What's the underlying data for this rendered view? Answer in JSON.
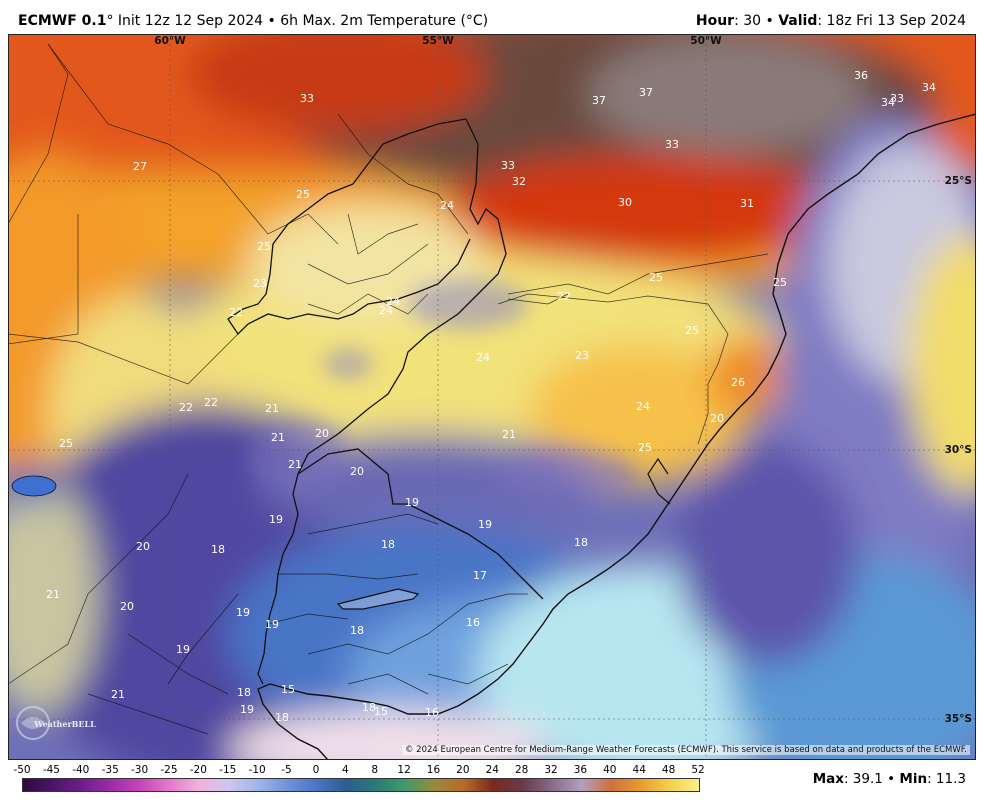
{
  "header": {
    "model": "ECMWF 0.1",
    "degree": "°",
    "title_rest": " Init 12z 12 Sep 2024 • 6h Max. 2m Temperature (°C)",
    "hour_label": "Hour",
    "hour_value": ": 30 • ",
    "valid_label": "Valid",
    "valid_value": ": 18z Fri 13 Sep 2024"
  },
  "map": {
    "lon_labels": [
      "60°W",
      "55°W",
      "50°W"
    ],
    "lat_labels": [
      "25°S",
      "30°S",
      "35°S"
    ],
    "temperature_labels": [
      {
        "v": "33"
      },
      {
        "v": "37"
      },
      {
        "v": "37"
      },
      {
        "v": "36"
      },
      {
        "v": "34"
      },
      {
        "v": "33"
      },
      {
        "v": "34"
      },
      {
        "v": "27"
      },
      {
        "v": "33"
      },
      {
        "v": "32"
      },
      {
        "v": "33"
      },
      {
        "v": "30"
      },
      {
        "v": "31"
      },
      {
        "v": "25"
      },
      {
        "v": "24"
      },
      {
        "v": "25"
      },
      {
        "v": "23"
      },
      {
        "v": "25"
      },
      {
        "v": "22"
      },
      {
        "v": "25"
      },
      {
        "v": "24"
      },
      {
        "v": "24"
      },
      {
        "v": "22"
      },
      {
        "v": "25"
      },
      {
        "v": "24"
      },
      {
        "v": "23"
      },
      {
        "v": "26"
      },
      {
        "v": "22"
      },
      {
        "v": "22"
      },
      {
        "v": "21"
      },
      {
        "v": "24"
      },
      {
        "v": "20"
      },
      {
        "v": "25"
      },
      {
        "v": "21"
      },
      {
        "v": "20"
      },
      {
        "v": "21"
      },
      {
        "v": "21"
      },
      {
        "v": "20"
      },
      {
        "v": "25"
      },
      {
        "v": "19"
      },
      {
        "v": "19"
      },
      {
        "v": "19"
      },
      {
        "v": "18"
      },
      {
        "v": "20"
      },
      {
        "v": "18"
      },
      {
        "v": "18"
      },
      {
        "v": "17"
      },
      {
        "v": "21"
      },
      {
        "v": "20"
      },
      {
        "v": "19"
      },
      {
        "v": "19"
      },
      {
        "v": "18"
      },
      {
        "v": "16"
      },
      {
        "v": "19"
      },
      {
        "v": "21"
      },
      {
        "v": "18"
      },
      {
        "v": "15"
      },
      {
        "v": "19"
      },
      {
        "v": "18"
      },
      {
        "v": "18"
      },
      {
        "v": "15"
      },
      {
        "v": "16"
      }
    ],
    "copyright": "© 2024 European Centre for Medium-Range Weather Forecasts (ECMWF). This service is based on data and products of the ECMWF.",
    "logo_text": "WeatherBELL"
  },
  "colorbar": {
    "ticks": [
      "-50",
      "-45",
      "-40",
      "-35",
      "-30",
      "-25",
      "-20",
      "-15",
      "-10",
      "-5",
      "0",
      "4",
      "8",
      "12",
      "16",
      "20",
      "24",
      "28",
      "32",
      "36",
      "40",
      "44",
      "48",
      "52"
    ],
    "colors": [
      "#2b0a3d",
      "#4a1466",
      "#6d1f8a",
      "#9c2ca8",
      "#c646b9",
      "#e37bc9",
      "#f0b3dc",
      "#cfc7ee",
      "#9fb4e8",
      "#6f93da",
      "#4a74c8",
      "#2c5e8e",
      "#2a7a78",
      "#3f9a6a",
      "#9a8a3a",
      "#b86a2a",
      "#7a2a1a",
      "#6a3a4a",
      "#8a6a8a",
      "#b0a0c0",
      "#d07040",
      "#e89a30",
      "#f4d24a",
      "#f9f08a"
    ]
  },
  "stats": {
    "max_label": "Max",
    "max_value": ": 39.1 • ",
    "min_label": "Min",
    "min_value": ": 11.3"
  }
}
